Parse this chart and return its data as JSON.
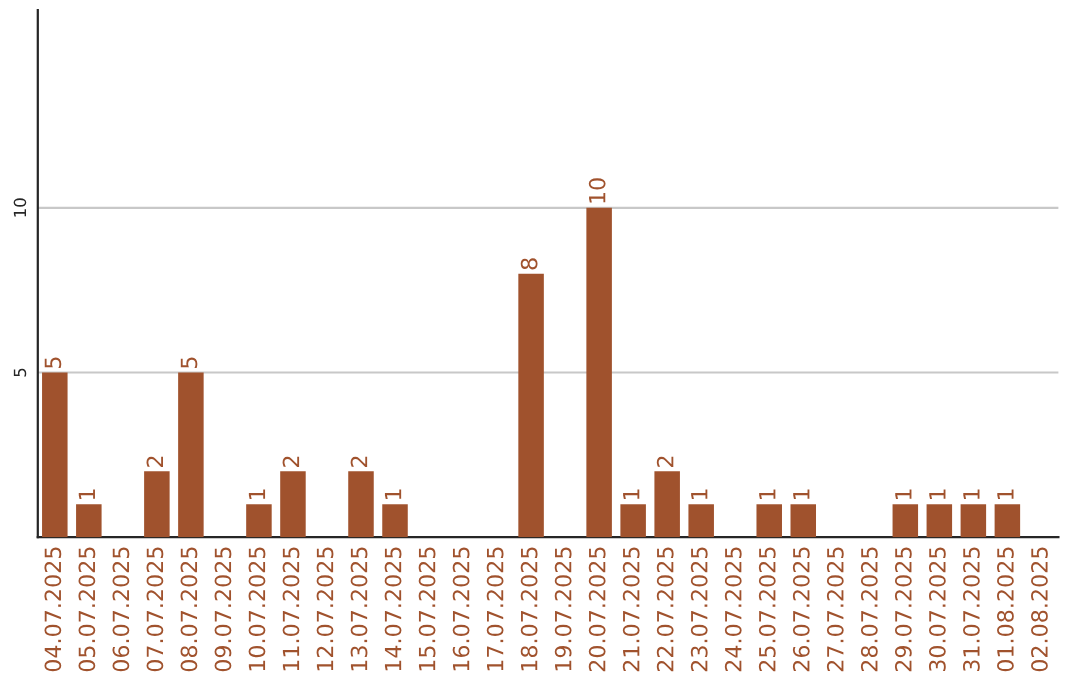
{
  "chart_data": {
    "type": "bar",
    "categories": [
      "04.07.2025",
      "05.07.2025",
      "06.07.2025",
      "07.07.2025",
      "08.07.2025",
      "09.07.2025",
      "10.07.2025",
      "11.07.2025",
      "12.07.2025",
      "13.07.2025",
      "14.07.2025",
      "15.07.2025",
      "16.07.2025",
      "17.07.2025",
      "18.07.2025",
      "19.07.2025",
      "20.07.2025",
      "21.07.2025",
      "22.07.2025",
      "23.07.2025",
      "24.07.2025",
      "25.07.2025",
      "26.07.2025",
      "27.07.2025",
      "28.07.2025",
      "29.07.2025",
      "30.07.2025",
      "31.07.2025",
      "01.08.2025",
      "02.08.2025"
    ],
    "values": [
      5,
      1,
      0,
      2,
      5,
      0,
      1,
      2,
      0,
      2,
      1,
      0,
      0,
      0,
      8,
      0,
      10,
      1,
      2,
      1,
      0,
      1,
      1,
      0,
      0,
      1,
      1,
      1,
      1,
      0
    ],
    "value_labels": [
      "5",
      "1",
      null,
      "2",
      "5",
      null,
      "1",
      "2",
      null,
      "2",
      "1",
      null,
      null,
      null,
      "8",
      null,
      "10",
      "1",
      "2",
      "1",
      null,
      "1",
      "1",
      null,
      null,
      "1",
      "1",
      "1",
      "1",
      null
    ],
    "color": "#a0522d",
    "ylim": [
      0,
      16
    ],
    "yticks": [
      5,
      10
    ],
    "grid": "y"
  }
}
